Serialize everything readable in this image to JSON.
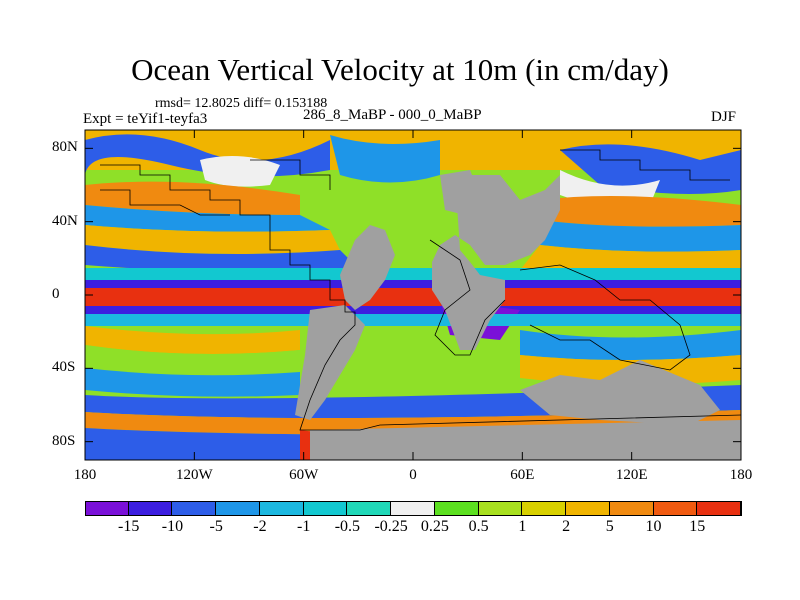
{
  "title": "Ocean Vertical Velocity at 10m (in cm/day)",
  "stats": "rmsd= 12.8025 diff= 0.153188",
  "experiment": "Expt = teYif1-teyfa3",
  "run_label": "286_8_MaBP - 000_0_MaBP",
  "season": "DJF",
  "land_color": "#a0a0a0",
  "axes": {
    "y_ticks": [
      "80N",
      "40N",
      "0",
      "40S",
      "80S"
    ],
    "y_values": [
      80,
      40,
      0,
      -40,
      -80
    ],
    "x_ticks": [
      "180",
      "120W",
      "60W",
      "0",
      "60E",
      "120E",
      "180"
    ],
    "x_values": [
      -180,
      -120,
      -60,
      0,
      60,
      120,
      180
    ],
    "lon_range": [
      -180,
      180
    ],
    "lat_range": [
      -90,
      90
    ]
  },
  "colorbar": {
    "levels": [
      "-15",
      "-10",
      "-5",
      "-2",
      "-1",
      "-0.5",
      "-0.25",
      "0.25",
      "0.5",
      "1",
      "2",
      "5",
      "10",
      "15"
    ],
    "colors": [
      "#7a10d8",
      "#3c1ee0",
      "#2d5de8",
      "#1e96e8",
      "#1cb8e0",
      "#12c8d0",
      "#20d8b8",
      "#f0f0f0",
      "#5ce020",
      "#a8e020",
      "#d8d000",
      "#f0b400",
      "#f08a10",
      "#f05a10",
      "#e83010"
    ]
  }
}
